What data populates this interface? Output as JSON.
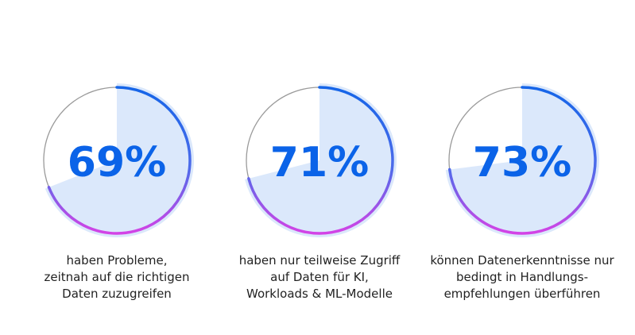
{
  "chart_data": [
    {
      "type": "pie",
      "value_label": "69%",
      "percent": 69,
      "caption": [
        "haben Probleme,",
        "zeitnah auf die richtigen",
        "Daten zuzugreifen"
      ]
    },
    {
      "type": "pie",
      "value_label": "71%",
      "percent": 71,
      "caption": [
        "haben nur teilweise Zugriff",
        "auf Daten für KI,",
        "Workloads & ML-Modelle"
      ]
    },
    {
      "type": "pie",
      "value_label": "73%",
      "percent": 73,
      "caption": [
        "können Datenerkenntnisse nur",
        "bedingt in Handlungs-",
        "empfehlungen überführen"
      ]
    }
  ],
  "colors": {
    "fill": "#dbe8fb",
    "text": "#0b63e8",
    "gradient_start": "#1565e8",
    "gradient_end": "#d443e6",
    "track": "#9a9a9a"
  }
}
